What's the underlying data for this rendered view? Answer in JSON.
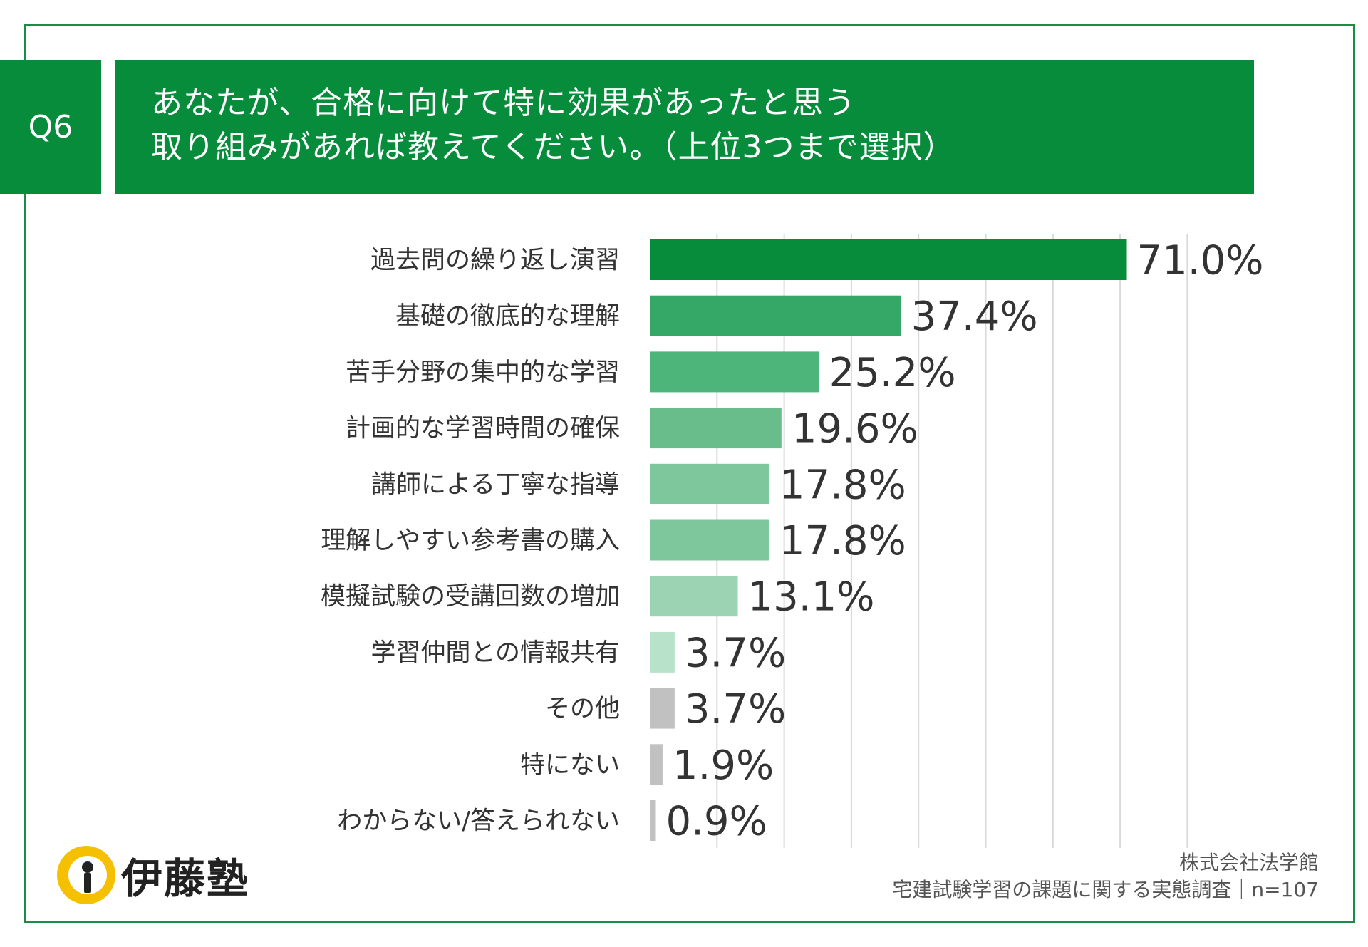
{
  "question": {
    "number": "Q6",
    "line1": "あなたが、合格に向けて特に効果があったと思う",
    "line2": "取り組みがあれば教えてください。（上位3つまで選択）"
  },
  "chart_data": {
    "type": "bar",
    "orientation": "horizontal",
    "title": "あなたが、合格に向けて特に効果があったと思う取り組みがあれば教えてください。（上位3つまで選択）",
    "categories": [
      "過去問の繰り返し演習",
      "基礎の徹底的な理解",
      "苦手分野の集中的な学習",
      "計画的な学習時間の確保",
      "講師による丁寧な指導",
      "理解しやすい参考書の購入",
      "模擬試験の受講回数の増加",
      "学習仲間との情報共有",
      "その他",
      "特にない",
      "わからない/答えられない"
    ],
    "values": [
      71.0,
      37.4,
      25.2,
      19.6,
      17.8,
      17.8,
      13.1,
      3.7,
      3.7,
      1.9,
      0.9
    ],
    "value_labels": [
      "71.0%",
      "37.4%",
      "25.2%",
      "19.6%",
      "17.8%",
      "17.8%",
      "13.1%",
      "3.7%",
      "3.7%",
      "1.9%",
      "0.9%"
    ],
    "colors": [
      "#078c3c",
      "#35a767",
      "#4db47a",
      "#69bd8b",
      "#7ec79c",
      "#7ec79c",
      "#9cd4b3",
      "#b9e2ca",
      "#c1c1c1",
      "#c1c1c1",
      "#c1c1c1"
    ],
    "unit": "%",
    "xlim": [
      0,
      80
    ],
    "grid_step": 10,
    "grid": true,
    "xlabel": "",
    "ylabel": ""
  },
  "logo": {
    "text": "伊藤塾",
    "color": "#f5c000"
  },
  "source": {
    "company": "株式会社法学館",
    "survey": "宅建試験学習の課題に関する実態調査｜n=107"
  }
}
